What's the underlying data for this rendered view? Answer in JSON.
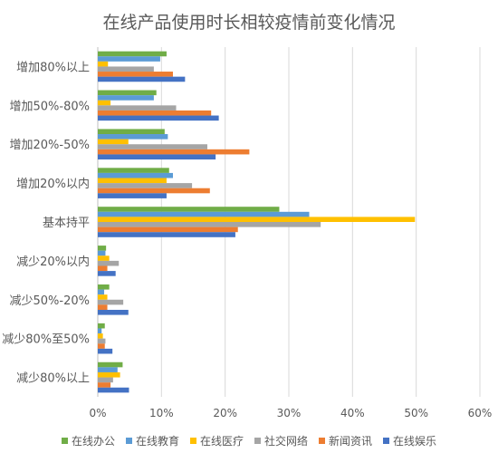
{
  "chart_data": {
    "type": "bar",
    "orientation": "horizontal",
    "title": "在线产品使用时长相较疫情前变化情况",
    "categories": [
      "增加80%以上",
      "增加50%-80%",
      "增加20%-50%",
      "增加20%以内",
      "基本持平",
      "减少20%以内",
      "减少50%-20%",
      "减少80%至50%",
      "减少80%以上"
    ],
    "series": [
      {
        "name": "在线办公",
        "color": "#70AD47",
        "values": [
          10.8,
          9.2,
          10.5,
          11.2,
          28.5,
          1.3,
          1.8,
          1.1,
          3.9
        ]
      },
      {
        "name": "在线教育",
        "color": "#5B9BD5",
        "values": [
          9.8,
          8.8,
          11.0,
          11.8,
          33.2,
          1.2,
          1.0,
          0.6,
          3.1
        ]
      },
      {
        "name": "在线医疗",
        "color": "#FFC000",
        "values": [
          1.6,
          2.0,
          4.8,
          10.8,
          49.8,
          1.8,
          1.5,
          0.8,
          3.5
        ]
      },
      {
        "name": "社交网络",
        "color": "#A5A5A5",
        "values": [
          8.8,
          12.3,
          17.2,
          14.8,
          35.0,
          3.3,
          4.0,
          1.2,
          2.4
        ]
      },
      {
        "name": "新闻资讯",
        "color": "#ED7D31",
        "values": [
          11.8,
          17.8,
          23.8,
          17.6,
          22.0,
          1.5,
          1.5,
          1.1,
          2.0
        ]
      },
      {
        "name": "在线娱乐",
        "color": "#4472C4",
        "values": [
          13.7,
          19.0,
          18.5,
          10.8,
          21.6,
          2.8,
          4.8,
          2.3,
          4.9
        ]
      }
    ],
    "xlim": [
      0,
      60
    ],
    "xticks": [
      "0%",
      "10%",
      "20%",
      "30%",
      "40%",
      "50%",
      "60%"
    ],
    "grid": true,
    "legend_position": "bottom"
  }
}
